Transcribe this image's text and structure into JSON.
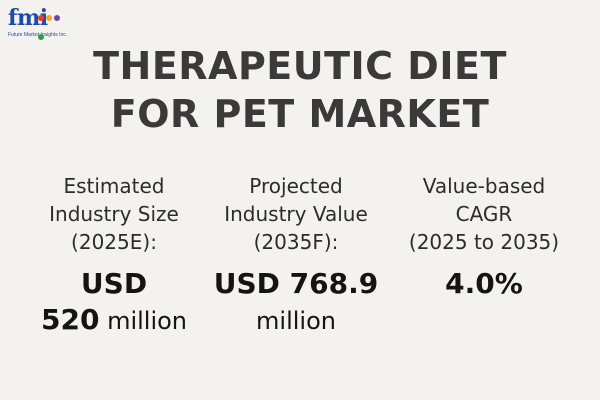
{
  "logo": {
    "letters": "fmi",
    "tagline": "Future Market Insights Inc.",
    "dot_colors": [
      "#e8412b",
      "#f5a623",
      "#7b3fa0",
      "#2f9e44"
    ]
  },
  "title": {
    "line1": "THERAPEUTIC DIET",
    "line2": "FOR PET MARKET"
  },
  "stats": [
    {
      "label_lines": [
        "Estimated",
        "Industry Size",
        "(2025E):"
      ],
      "value_line1": "USD",
      "value_line2_bold": "520",
      "value_line2_normal": " million"
    },
    {
      "label_lines": [
        "Projected",
        "Industry Value",
        "(2035F):"
      ],
      "value_line1": "USD 768.9",
      "value_line2_bold": "",
      "value_line2_normal": "million"
    },
    {
      "label_lines": [
        "Value-based",
        "CAGR",
        "(2025 to 2035)"
      ],
      "value_line1": "4.0%",
      "value_line2_bold": "",
      "value_line2_normal": ""
    }
  ]
}
